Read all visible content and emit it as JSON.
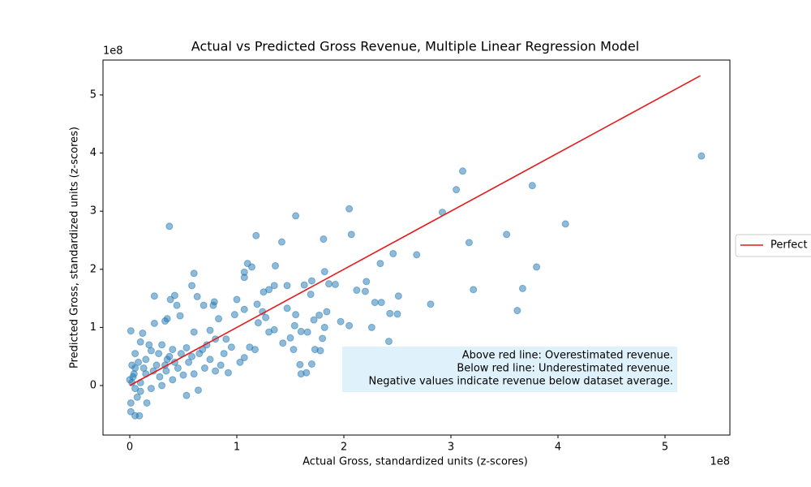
{
  "chart_data": {
    "type": "scatter",
    "title": "Actual vs Predicted Gross Revenue, Multiple Linear Regression Model",
    "x_label": "Actual Gross, standardized units (z-scores)",
    "y_label": "Predicted Gross, standardized units (z-scores)",
    "x_offset_label": "1e8",
    "y_offset_label": "1e8",
    "xlim": [
      -0.25,
      5.606
    ],
    "ylim": [
      -0.852,
      5.6
    ],
    "xticks": [
      0,
      1,
      2,
      3,
      4,
      5
    ],
    "yticks": [
      0,
      1,
      2,
      3,
      4,
      5
    ],
    "annotation": [
      "Above red line: Overestimated revenue.",
      "Below red line: Underestimated revenue.",
      "Negative values indicate revenue below dataset average."
    ],
    "annotation_color": "#dff1fb",
    "legend": "outside right",
    "series": [
      {
        "kind": "points",
        "color": "#1f77b4",
        "alpha": 0.5,
        "x": [
          5.34,
          3.11,
          3.05,
          2.92,
          4.07,
          3.76,
          3.52,
          3.17,
          3.21,
          3.8,
          3.67,
          3.62,
          2.05,
          2.07,
          1.55,
          1.18,
          1.42,
          1.81,
          0.37,
          2.68,
          2.46,
          2.34,
          2.81,
          2.51,
          2.5,
          2.43,
          2.29,
          2.35,
          2.21,
          2.2,
          2.12,
          2.26,
          2.42,
          2.05,
          1.97,
          1.82,
          1.86,
          1.92,
          1.7,
          1.69,
          1.63,
          1.47,
          1.35,
          1.36,
          1.1,
          1.14,
          1.07,
          1.07,
          1,
          0.98,
          1.07,
          1.19,
          1.25,
          1.3,
          1.24,
          1.27,
          1.2,
          1.47,
          1.55,
          1.54,
          1.77,
          1.72,
          1.84,
          1.82,
          1.8,
          1.66,
          1.6,
          1.5,
          1.43,
          1.53,
          1.59,
          1.6,
          1.7,
          1.65,
          1.73,
          1.78,
          1.35,
          1.3,
          1.12,
          1.07,
          1.03,
          1.17,
          0.6,
          0.58,
          0.23,
          0.63,
          0.42,
          0.38,
          0.44,
          0.83,
          0.79,
          0.78,
          0.69,
          0.47,
          0.35,
          0.33,
          0.23,
          0.12,
          0.01,
          0.6,
          0.9,
          0.95,
          0.72,
          0.53,
          0.4,
          0.3,
          0.2,
          0.15,
          0.08,
          0.05,
          0.03,
          0.02,
          0.05,
          0.07,
          0.1,
          0.15,
          0.25,
          0.35,
          0.28,
          0.45,
          0.55,
          0.65,
          0.75,
          0.85,
          0.92,
          0.8,
          0.7,
          0.6,
          0.5,
          0.4,
          0.3,
          0.2,
          0.1,
          0.01,
          0.01,
          0.05,
          0.09,
          0.16,
          0.53,
          0.64,
          0.34,
          0.37,
          0.48,
          0.27,
          0.18,
          0.1,
          0.05,
          0.02,
          0,
          0.04,
          0.13,
          0.22,
          0.33,
          0.42,
          0.58,
          0.68,
          0.75,
          0.8,
          0.88
        ],
        "y": [
          3.95,
          3.69,
          3.37,
          2.98,
          2.78,
          3.44,
          2.6,
          2.46,
          1.65,
          2.04,
          1.67,
          1.29,
          3.04,
          2.6,
          2.92,
          2.58,
          2.47,
          2.52,
          2.74,
          2.25,
          2.27,
          2.1,
          1.4,
          1.54,
          1.23,
          1.24,
          1.43,
          1.43,
          1.79,
          1.62,
          1.64,
          1,
          0.76,
          1.03,
          1.1,
          1.96,
          1.75,
          1.74,
          1.8,
          1.57,
          1.73,
          1.72,
          1.72,
          2.06,
          2.1,
          2.04,
          1.95,
          1.86,
          1.48,
          1.22,
          1.31,
          1.4,
          1.61,
          1.65,
          1.27,
          1.17,
          1.08,
          1.33,
          1.22,
          1.03,
          1.21,
          1.13,
          1.27,
          1,
          0.81,
          0.92,
          0.93,
          0.82,
          0.73,
          0.62,
          0.36,
          0.2,
          0.37,
          0.22,
          0.62,
          0.6,
          0.96,
          0.92,
          0.66,
          0.48,
          0.4,
          0.62,
          1.93,
          1.72,
          1.54,
          1.53,
          1.55,
          1.48,
          1.38,
          1.15,
          1.44,
          1.38,
          1.38,
          1.2,
          1.15,
          1.11,
          1.07,
          0.9,
          0.94,
          0.92,
          0.8,
          0.66,
          0.7,
          0.65,
          0.62,
          0.7,
          0.6,
          0.45,
          0.4,
          0.3,
          0.15,
          0.05,
          -0.05,
          -0.2,
          -0.1,
          0.2,
          0.35,
          0.45,
          0.15,
          0.3,
          0.4,
          0.55,
          0.45,
          0.35,
          0.22,
          0.25,
          0.3,
          0.2,
          0.18,
          0.1,
          0,
          -0.05,
          0.05,
          -0.3,
          -0.45,
          -0.52,
          -0.52,
          -0.3,
          -0.17,
          -0.08,
          0.25,
          0.5,
          0.55,
          0.55,
          0.7,
          0.75,
          0.55,
          0.35,
          0.1,
          0.2,
          0.3,
          0.25,
          0.35,
          0.4,
          0.5,
          0.62,
          0.95,
          0.8,
          0.55
        ]
      },
      {
        "kind": "line",
        "name": "Perfect",
        "color": "#e41a1c",
        "x": [
          0,
          5.33
        ],
        "y": [
          0,
          5.33
        ]
      }
    ]
  }
}
